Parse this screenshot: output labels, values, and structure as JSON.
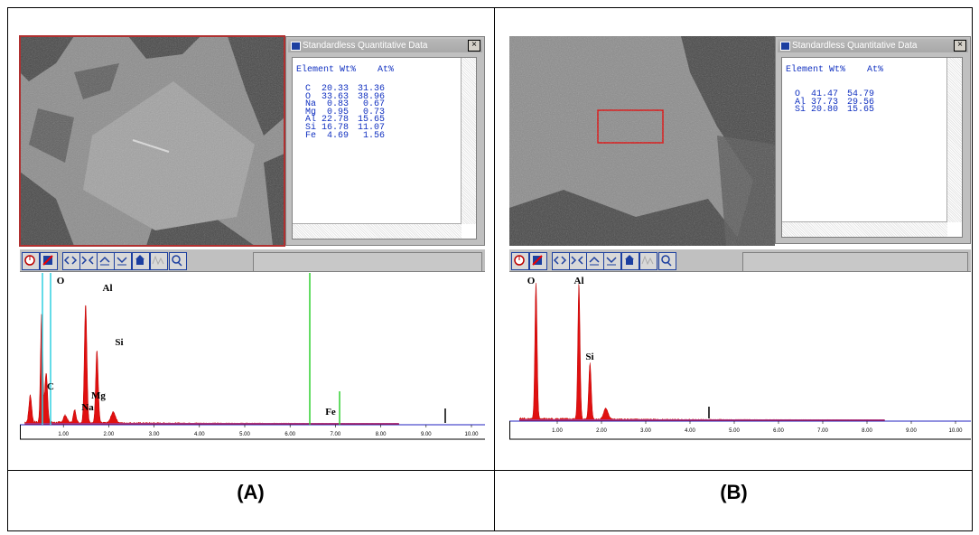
{
  "panels": [
    {
      "label": "(A)",
      "window_title": "Standardless Quantitative Data",
      "table": {
        "headers": [
          "Element",
          "Wt%",
          "At%"
        ],
        "rows": [
          [
            "C",
            "20.33",
            "31.36"
          ],
          [
            "O",
            "33.63",
            "38.96"
          ],
          [
            "Na",
            "0.83",
            "0.67"
          ],
          [
            "Mg",
            "0.95",
            "0.73"
          ],
          [
            "Al",
            "22.78",
            "15.65"
          ],
          [
            "Si",
            "16.78",
            "11.07"
          ],
          [
            "Fe",
            "4.69",
            "1.56"
          ]
        ]
      },
      "spectrum": {
        "peak_labels": [
          "O",
          "Al",
          "Si",
          "C",
          "Mg",
          "Na",
          "Fe"
        ],
        "xticks": [
          {
            "value": 1,
            "label": "1.00"
          },
          {
            "value": 2,
            "label": "2.00"
          },
          {
            "value": 3,
            "label": "3.00"
          },
          {
            "value": 4,
            "label": "4.00"
          },
          {
            "value": 5,
            "label": "5.00"
          },
          {
            "value": 6,
            "label": "6.00"
          },
          {
            "value": 7,
            "label": "7.00"
          },
          {
            "value": 8,
            "label": "8.00"
          },
          {
            "value": 9,
            "label": "9.00"
          },
          {
            "value": 10,
            "label": "10.00"
          }
        ]
      }
    },
    {
      "label": "(B)",
      "window_title": "Standardless Quantitative Data",
      "table": {
        "headers": [
          "Element",
          "Wt%",
          "At%"
        ],
        "rows": [
          [
            "O",
            "41.47",
            "54.79"
          ],
          [
            "Al",
            "37.73",
            "29.56"
          ],
          [
            "Si",
            "20.80",
            "15.65"
          ]
        ]
      },
      "spectrum": {
        "peak_labels": [
          "O",
          "Al",
          "Si"
        ],
        "xticks": [
          {
            "value": 1,
            "label": "1.00"
          },
          {
            "value": 2,
            "label": "2.00"
          },
          {
            "value": 3,
            "label": "3.00"
          },
          {
            "value": 4,
            "label": "4.00"
          },
          {
            "value": 5,
            "label": "5.00"
          },
          {
            "value": 6,
            "label": "6.00"
          },
          {
            "value": 7,
            "label": "7.00"
          },
          {
            "value": 8,
            "label": "8.00"
          },
          {
            "value": 9,
            "label": "9.00"
          },
          {
            "value": 10,
            "label": "10.00"
          }
        ]
      }
    }
  ]
}
